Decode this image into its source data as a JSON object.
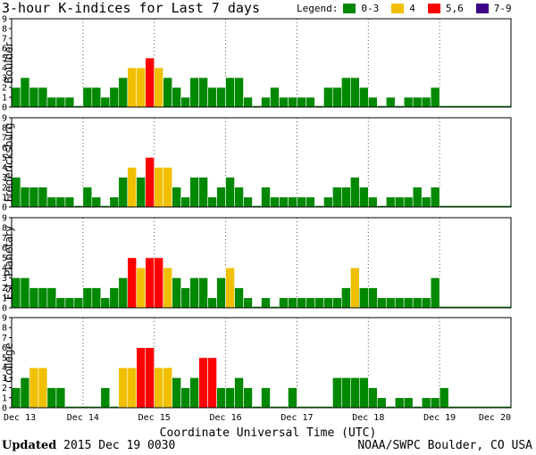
{
  "title": "3-hour K-indices for Last 7 days",
  "legend": {
    "title": "Legend:",
    "items": [
      {
        "label": "0-3",
        "color": "#008800"
      },
      {
        "label": "4",
        "color": "#f0c000"
      },
      {
        "label": "5,6",
        "color": "#ff0000"
      },
      {
        "label": "7-9",
        "color": "#3d0088"
      }
    ]
  },
  "footer": {
    "updated_label": "Updated",
    "updated_value": "2015 Dec 19 0030",
    "source": "NOAA/SWPC Boulder, CO USA"
  },
  "chart_data": {
    "type": "bar",
    "xlabel": "Coordinate Universal Time (UTC)",
    "x_ticks": [
      "Dec 13",
      "Dec 14",
      "Dec 15",
      "Dec 16",
      "Dec 17",
      "Dec 18",
      "Dec 19",
      "Dec 20"
    ],
    "ylim": [
      0,
      9
    ],
    "y_ticks": [
      0,
      1,
      2,
      3,
      4,
      5,
      6,
      7,
      8,
      9
    ],
    "color_scale": {
      "0-3": "#008800",
      "4": "#f0c000",
      "5-6": "#ff0000",
      "7-9": "#3d0088"
    },
    "series": [
      {
        "name": "Boulder",
        "values": [
          2,
          3,
          2,
          2,
          1,
          1,
          1,
          0,
          2,
          2,
          1,
          2,
          3,
          4,
          4,
          5,
          4,
          3,
          2,
          1,
          3,
          3,
          2,
          2,
          3,
          3,
          1,
          0,
          1,
          2,
          1,
          1,
          1,
          1,
          0,
          2,
          2,
          3,
          3,
          2,
          1,
          0,
          1,
          0,
          1,
          1,
          1,
          2,
          0,
          0,
          0,
          0,
          0,
          0,
          0,
          0
        ]
      },
      {
        "name": "Fredericksburg",
        "values": [
          3,
          2,
          2,
          2,
          1,
          1,
          1,
          0,
          2,
          1,
          0,
          1,
          3,
          4,
          3,
          5,
          4,
          4,
          2,
          1,
          3,
          3,
          1,
          2,
          3,
          2,
          1,
          0,
          2,
          1,
          1,
          1,
          1,
          1,
          0,
          1,
          2,
          2,
          3,
          2,
          1,
          0,
          1,
          1,
          1,
          2,
          1,
          2,
          0,
          0,
          0,
          0,
          0,
          0,
          0,
          0
        ]
      },
      {
        "name": "Est. Planetary",
        "values": [
          3,
          3,
          2,
          2,
          2,
          1,
          1,
          1,
          2,
          2,
          1,
          2,
          3,
          5,
          4,
          5,
          5,
          4,
          3,
          2,
          3,
          3,
          1,
          3,
          4,
          2,
          1,
          0,
          1,
          0,
          1,
          1,
          1,
          1,
          1,
          1,
          1,
          2,
          4,
          2,
          2,
          1,
          1,
          1,
          1,
          1,
          1,
          3,
          0,
          0,
          0,
          0,
          0,
          0,
          0,
          0
        ]
      },
      {
        "name": "College",
        "values": [
          2,
          3,
          4,
          4,
          2,
          2,
          0,
          0,
          0,
          0,
          2,
          0,
          4,
          4,
          6,
          6,
          4,
          4,
          3,
          2,
          3,
          5,
          5,
          2,
          2,
          3,
          2,
          0,
          2,
          0,
          0,
          2,
          0,
          0,
          0,
          0,
          3,
          3,
          3,
          3,
          2,
          1,
          0,
          1,
          1,
          0,
          1,
          1,
          2,
          0,
          0,
          0,
          0,
          0,
          0,
          0
        ]
      }
    ]
  }
}
